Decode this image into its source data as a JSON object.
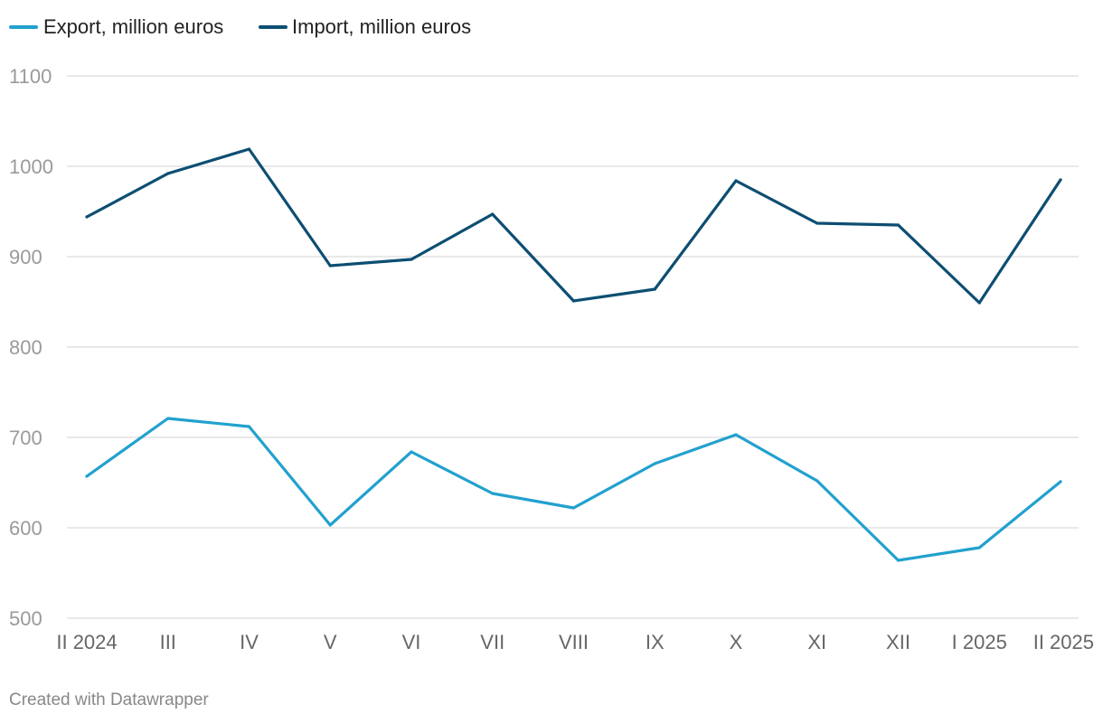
{
  "colors": {
    "export": "#22a1cf",
    "import": "#0d4e72"
  },
  "chart_data": {
    "type": "line",
    "title": "",
    "xlabel": "",
    "ylabel": "",
    "categories": [
      "II 2024",
      "III",
      "IV",
      "V",
      "VI",
      "VII",
      "VIII",
      "IX",
      "X",
      "XI",
      "XII",
      "I 2025",
      "II 2025"
    ],
    "ylim": [
      500,
      1100
    ],
    "yticks": [
      500,
      600,
      700,
      800,
      900,
      1000,
      1100
    ],
    "grid": true,
    "legend_position": "top-left",
    "series": [
      {
        "name": "Export, million euros",
        "color_key": "export",
        "values": [
          657,
          721,
          712,
          603,
          684,
          638,
          622,
          671,
          703,
          652,
          564,
          578,
          651
        ]
      },
      {
        "name": "Import, million euros",
        "color_key": "import",
        "values": [
          944,
          992,
          1019,
          890,
          897,
          947,
          851,
          864,
          984,
          937,
          935,
          849,
          985
        ]
      }
    ]
  },
  "footer": {
    "credit": "Created with Datawrapper"
  }
}
